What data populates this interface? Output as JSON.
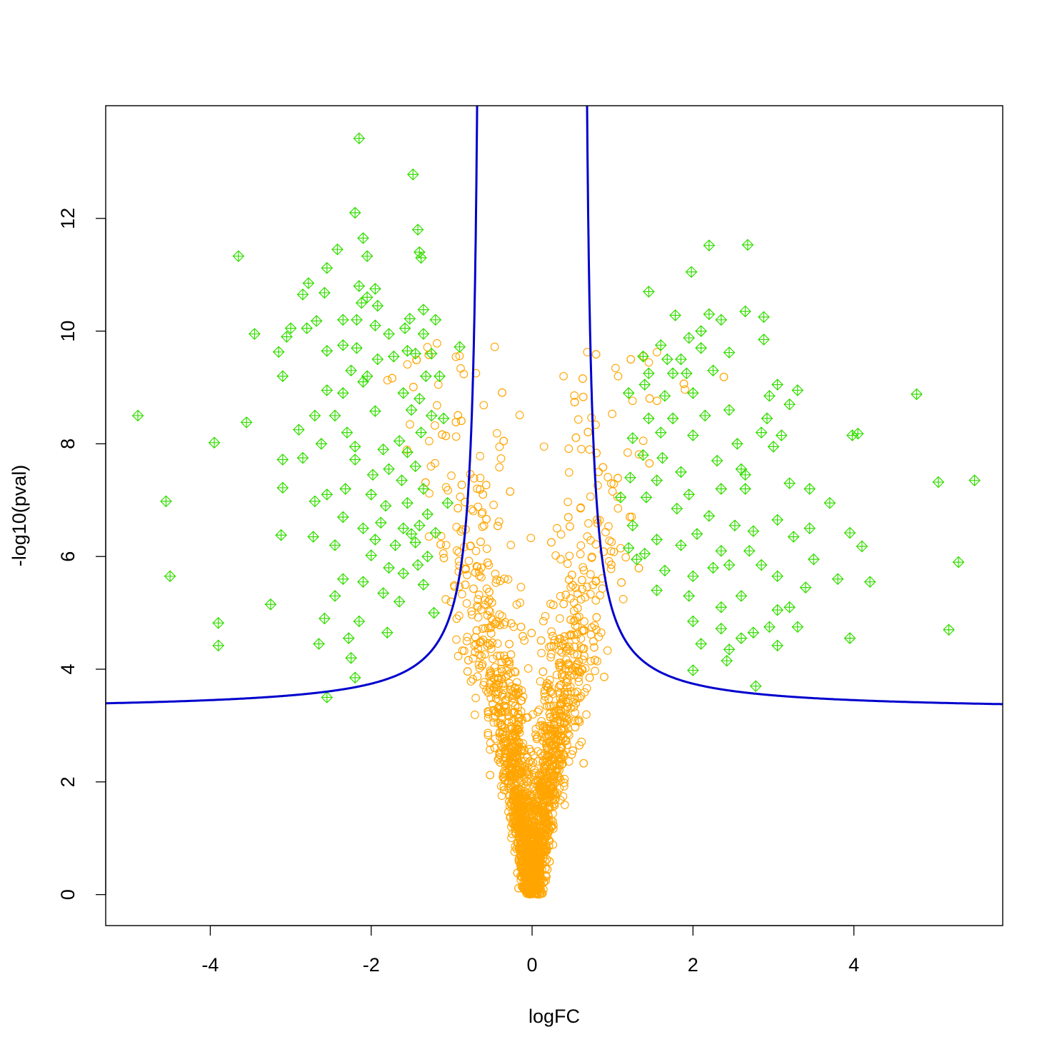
{
  "chart_data": {
    "type": "scatter",
    "title": "",
    "xlabel": "logFC",
    "ylabel": "-log10(pval)",
    "xlim": [
      -5.3,
      5.85
    ],
    "ylim": [
      -0.55,
      14.0
    ],
    "x_ticks": [
      -4,
      -2,
      0,
      2,
      4
    ],
    "y_ticks": [
      0,
      2,
      4,
      6,
      8,
      10,
      12
    ],
    "x_tick_labels": [
      "-4",
      "-2",
      "0",
      "2",
      "4"
    ],
    "y_tick_labels": [
      "0",
      "2",
      "4",
      "6",
      "8",
      "10",
      "12"
    ],
    "grid": false,
    "legend": "none",
    "colors": {
      "nonsignificant": "#FFA500",
      "significant": "#33DD00",
      "threshold_curve": "#0000CD",
      "axes": "#000000"
    },
    "threshold_curve": {
      "description": "symmetric hyperbolic significance boundary",
      "asymptote_x": [
        -0.62,
        0.62
      ],
      "asymptote_y": 3.25,
      "constant": 0.68
    },
    "series": [
      {
        "marker": "diamond-cross",
        "color": "#33DD00",
        "points": [
          [
            -2.15,
            13.42
          ],
          [
            -1.48,
            12.78
          ],
          [
            -2.2,
            12.1
          ],
          [
            -1.42,
            11.8
          ],
          [
            -2.1,
            11.65
          ],
          [
            -3.65,
            11.33
          ],
          [
            -2.05,
            11.33
          ],
          [
            -1.4,
            11.4
          ],
          [
            -1.38,
            11.3
          ],
          [
            -2.55,
            11.12
          ],
          [
            -2.42,
            11.45
          ],
          [
            -2.85,
            10.65
          ],
          [
            -2.78,
            10.85
          ],
          [
            -2.58,
            10.68
          ],
          [
            -2.15,
            10.8
          ],
          [
            -1.95,
            10.75
          ],
          [
            -2.05,
            10.6
          ],
          [
            -2.12,
            10.5
          ],
          [
            -1.92,
            10.45
          ],
          [
            -1.35,
            10.38
          ],
          [
            -1.2,
            10.2
          ],
          [
            -1.52,
            10.22
          ],
          [
            -2.35,
            10.2
          ],
          [
            -2.18,
            10.2
          ],
          [
            -2.68,
            10.18
          ],
          [
            -2.8,
            10.05
          ],
          [
            -3.0,
            10.05
          ],
          [
            -3.45,
            9.95
          ],
          [
            -3.05,
            9.9
          ],
          [
            -3.15,
            9.63
          ],
          [
            -2.55,
            9.65
          ],
          [
            -2.35,
            9.75
          ],
          [
            -2.18,
            9.7
          ],
          [
            -1.95,
            10.1
          ],
          [
            -1.78,
            9.95
          ],
          [
            -1.58,
            10.05
          ],
          [
            -1.35,
            9.95
          ],
          [
            -1.55,
            9.65
          ],
          [
            -1.72,
            9.55
          ],
          [
            -1.92,
            9.5
          ],
          [
            -3.1,
            9.2
          ],
          [
            -2.25,
            9.3
          ],
          [
            -2.05,
            9.2
          ],
          [
            -1.45,
            9.6
          ],
          [
            -1.25,
            9.6
          ],
          [
            -1.15,
            9.2
          ],
          [
            -1.32,
            9.2
          ],
          [
            -0.9,
            9.72
          ],
          [
            -1.6,
            8.9
          ],
          [
            -2.1,
            9.1
          ],
          [
            -2.55,
            8.95
          ],
          [
            -2.35,
            8.9
          ],
          [
            -1.4,
            8.8
          ],
          [
            -1.5,
            8.6
          ],
          [
            -1.25,
            8.5
          ],
          [
            -4.9,
            8.5
          ],
          [
            -3.55,
            8.38
          ],
          [
            -2.9,
            8.25
          ],
          [
            -2.7,
            8.5
          ],
          [
            -2.45,
            8.5
          ],
          [
            -2.3,
            8.2
          ],
          [
            -1.95,
            8.58
          ],
          [
            -1.65,
            8.05
          ],
          [
            -1.38,
            8.2
          ],
          [
            -1.1,
            8.45
          ],
          [
            -3.95,
            8.02
          ],
          [
            -2.62,
            8.0
          ],
          [
            -2.2,
            7.95
          ],
          [
            -1.85,
            7.9
          ],
          [
            -1.55,
            7.85
          ],
          [
            -1.78,
            7.55
          ],
          [
            -1.45,
            7.6
          ],
          [
            -3.1,
            7.72
          ],
          [
            -2.85,
            7.75
          ],
          [
            -2.2,
            7.72
          ],
          [
            -1.98,
            7.45
          ],
          [
            -1.62,
            7.35
          ],
          [
            -1.35,
            7.2
          ],
          [
            -3.1,
            7.22
          ],
          [
            -2.55,
            7.1
          ],
          [
            -2.32,
            7.2
          ],
          [
            -2.0,
            7.1
          ],
          [
            -1.82,
            6.9
          ],
          [
            -1.55,
            6.95
          ],
          [
            -1.3,
            6.75
          ],
          [
            -4.55,
            6.98
          ],
          [
            -2.7,
            6.98
          ],
          [
            -2.35,
            6.7
          ],
          [
            -2.1,
            6.5
          ],
          [
            -1.88,
            6.6
          ],
          [
            -1.6,
            6.5
          ],
          [
            -1.4,
            6.55
          ],
          [
            -1.2,
            6.42
          ],
          [
            -3.12,
            6.38
          ],
          [
            -2.72,
            6.35
          ],
          [
            -2.45,
            6.2
          ],
          [
            -1.95,
            6.3
          ],
          [
            -1.7,
            6.2
          ],
          [
            -1.45,
            6.25
          ],
          [
            -1.3,
            6.0
          ],
          [
            -2.0,
            6.02
          ],
          [
            -1.78,
            5.8
          ],
          [
            -1.6,
            5.7
          ],
          [
            -1.42,
            5.85
          ],
          [
            -2.35,
            5.6
          ],
          [
            -2.1,
            5.55
          ],
          [
            -2.45,
            5.3
          ],
          [
            -1.85,
            5.35
          ],
          [
            -1.65,
            5.2
          ],
          [
            -1.35,
            5.5
          ],
          [
            -4.5,
            5.65
          ],
          [
            -3.25,
            5.15
          ],
          [
            -2.58,
            4.9
          ],
          [
            -2.15,
            4.85
          ],
          [
            -1.8,
            4.65
          ],
          [
            -3.9,
            4.82
          ],
          [
            -3.9,
            4.42
          ],
          [
            -2.65,
            4.45
          ],
          [
            -2.28,
            4.55
          ],
          [
            -2.25,
            4.2
          ],
          [
            -2.2,
            3.85
          ],
          [
            -2.55,
            3.5
          ],
          [
            -1.22,
            5.0
          ],
          [
            -1.5,
            6.4
          ],
          [
            -1.05,
            6.95
          ],
          [
            2.2,
            11.52
          ],
          [
            2.68,
            11.53
          ],
          [
            1.98,
            11.05
          ],
          [
            1.45,
            10.7
          ],
          [
            2.65,
            10.35
          ],
          [
            2.88,
            10.25
          ],
          [
            1.78,
            10.28
          ],
          [
            2.2,
            10.3
          ],
          [
            2.35,
            10.2
          ],
          [
            2.1,
            10.0
          ],
          [
            1.95,
            9.88
          ],
          [
            2.88,
            9.85
          ],
          [
            1.6,
            9.75
          ],
          [
            2.1,
            9.7
          ],
          [
            2.45,
            9.62
          ],
          [
            1.38,
            9.55
          ],
          [
            1.85,
            9.5
          ],
          [
            1.68,
            9.5
          ],
          [
            2.25,
            9.3
          ],
          [
            1.45,
            9.25
          ],
          [
            1.75,
            9.25
          ],
          [
            1.92,
            9.25
          ],
          [
            3.05,
            9.05
          ],
          [
            3.3,
            8.95
          ],
          [
            2.95,
            8.85
          ],
          [
            4.78,
            8.88
          ],
          [
            1.2,
            8.9
          ],
          [
            1.4,
            9.05
          ],
          [
            1.65,
            8.85
          ],
          [
            2.0,
            8.9
          ],
          [
            2.45,
            8.6
          ],
          [
            3.2,
            8.7
          ],
          [
            1.45,
            8.45
          ],
          [
            1.75,
            8.45
          ],
          [
            2.15,
            8.5
          ],
          [
            2.92,
            8.45
          ],
          [
            1.25,
            8.1
          ],
          [
            1.6,
            8.2
          ],
          [
            2.0,
            8.15
          ],
          [
            2.55,
            8.0
          ],
          [
            2.85,
            8.2
          ],
          [
            3.1,
            8.15
          ],
          [
            4.05,
            8.18
          ],
          [
            3.98,
            8.15
          ],
          [
            1.38,
            7.8
          ],
          [
            1.62,
            7.75
          ],
          [
            1.85,
            7.5
          ],
          [
            2.3,
            7.7
          ],
          [
            2.65,
            7.45
          ],
          [
            3.0,
            7.95
          ],
          [
            1.22,
            7.4
          ],
          [
            1.55,
            7.35
          ],
          [
            1.95,
            7.1
          ],
          [
            2.35,
            7.2
          ],
          [
            2.65,
            7.2
          ],
          [
            3.2,
            7.3
          ],
          [
            3.45,
            7.2
          ],
          [
            1.42,
            7.05
          ],
          [
            1.8,
            6.85
          ],
          [
            2.2,
            6.72
          ],
          [
            2.52,
            6.55
          ],
          [
            2.75,
            6.45
          ],
          [
            3.05,
            6.65
          ],
          [
            3.7,
            6.95
          ],
          [
            1.25,
            6.55
          ],
          [
            1.55,
            6.3
          ],
          [
            1.85,
            6.2
          ],
          [
            2.05,
            6.4
          ],
          [
            2.35,
            6.1
          ],
          [
            2.7,
            6.1
          ],
          [
            3.25,
            6.35
          ],
          [
            3.45,
            6.5
          ],
          [
            3.95,
            6.42
          ],
          [
            4.1,
            6.18
          ],
          [
            1.4,
            6.05
          ],
          [
            1.65,
            5.75
          ],
          [
            2.0,
            5.65
          ],
          [
            2.25,
            5.8
          ],
          [
            2.45,
            5.85
          ],
          [
            2.85,
            5.85
          ],
          [
            3.05,
            5.65
          ],
          [
            3.5,
            5.95
          ],
          [
            3.8,
            5.6
          ],
          [
            4.2,
            5.55
          ],
          [
            5.3,
            5.9
          ],
          [
            1.55,
            5.4
          ],
          [
            1.95,
            5.3
          ],
          [
            2.35,
            5.1
          ],
          [
            2.6,
            5.3
          ],
          [
            3.05,
            5.05
          ],
          [
            3.2,
            5.1
          ],
          [
            3.4,
            5.45
          ],
          [
            2.0,
            4.85
          ],
          [
            2.35,
            4.72
          ],
          [
            2.6,
            4.55
          ],
          [
            2.95,
            4.75
          ],
          [
            3.3,
            4.75
          ],
          [
            2.1,
            4.45
          ],
          [
            2.45,
            4.35
          ],
          [
            2.75,
            4.65
          ],
          [
            3.05,
            4.42
          ],
          [
            3.95,
            4.55
          ],
          [
            2.0,
            3.98
          ],
          [
            2.42,
            4.15
          ],
          [
            2.78,
            3.7
          ],
          [
            5.18,
            4.7
          ],
          [
            5.5,
            7.35
          ],
          [
            5.05,
            7.32
          ],
          [
            1.2,
            6.15
          ],
          [
            1.1,
            7.05
          ],
          [
            1.3,
            5.95
          ],
          [
            2.6,
            7.55
          ]
        ]
      }
    ]
  }
}
